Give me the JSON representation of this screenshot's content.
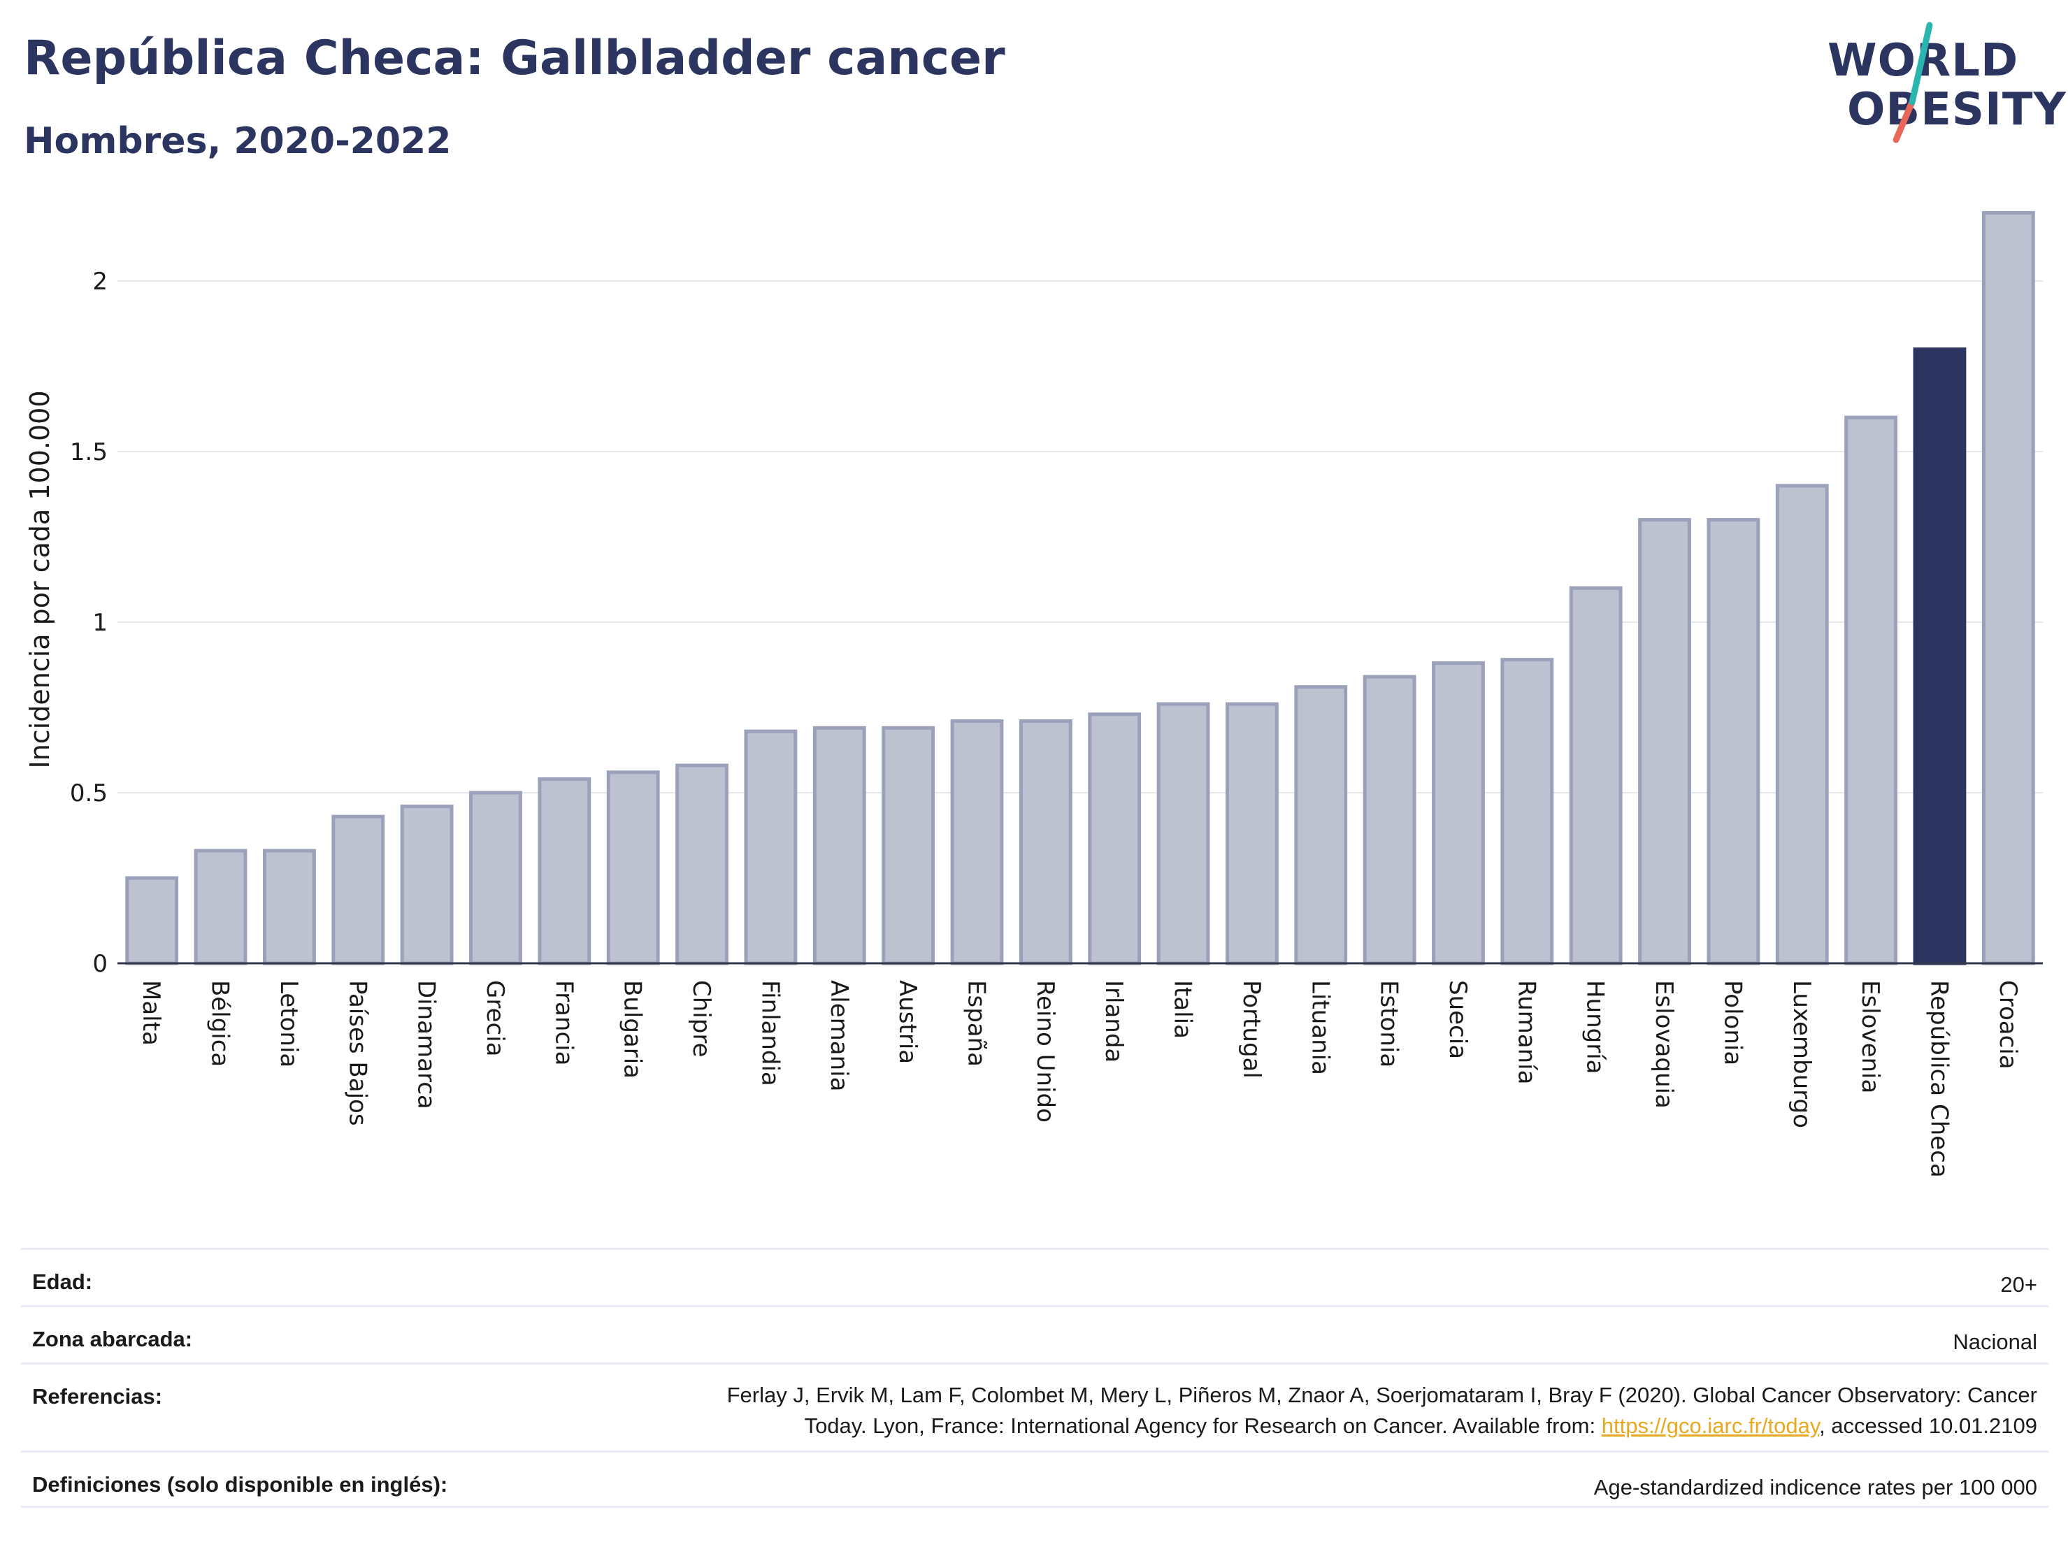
{
  "header": {
    "title": "República Checa: Gallbladder cancer",
    "subtitle": "Hombres, 2020-2022"
  },
  "logo": {
    "line1": "WORLD",
    "line2": "OBESITY",
    "accent_teal": "#2ab5b0",
    "accent_red": "#e8675a"
  },
  "chart_data": {
    "type": "bar",
    "ylabel": "Incidencia por cada 100.000",
    "xlabel": "",
    "ylim": [
      0,
      2.25
    ],
    "yticks": [
      0,
      0.5,
      1,
      1.5,
      2
    ],
    "ytick_labels": [
      "0",
      "0.5",
      "1",
      "1.5",
      "2"
    ],
    "grid": true,
    "highlight": "República Checa",
    "colors": {
      "bar": "#bec1cf",
      "bar_border": "#9ba1ba",
      "highlight": "#2c3560"
    },
    "categories": [
      "Malta",
      "Bélgica",
      "Letonia",
      "Países Bajos",
      "Dinamarca",
      "Grecia",
      "Francia",
      "Bulgaria",
      "Chipre",
      "Finlandia",
      "Alemania",
      "Austria",
      "España",
      "Reino Unido",
      "Irlanda",
      "Italia",
      "Portugal",
      "Lituania",
      "Estonia",
      "Suecia",
      "Rumanía",
      "Hungría",
      "Eslovaquia",
      "Polonia",
      "Luxemburgo",
      "Eslovenia",
      "República Checa",
      "Croacia"
    ],
    "values": [
      0.25,
      0.33,
      0.33,
      0.43,
      0.46,
      0.5,
      0.54,
      0.56,
      0.58,
      0.68,
      0.69,
      0.69,
      0.71,
      0.71,
      0.73,
      0.76,
      0.76,
      0.81,
      0.84,
      0.88,
      0.89,
      1.1,
      1.3,
      1.3,
      1.4,
      1.6,
      1.8,
      2.2
    ]
  },
  "meta": {
    "age_label": "Edad:",
    "age_value": "20+",
    "area_label": "Zona abarcada:",
    "area_value": "Nacional",
    "ref_label": "Referencias:",
    "ref_text_1": "Ferlay J, Ervik M, Lam F, Colombet M, Mery L, Piñeros M, Znaor A, Soerjomataram I, Bray F (2020). Global Cancer Observatory: Cancer",
    "ref_text_2": "Today. Lyon, France: International Agency for Research on Cancer. Available from: ",
    "ref_link": "https://gco.iarc.fr/today",
    "ref_text_3": ", accessed 10.01.2109",
    "def_label": "Definiciones (solo disponible en inglés):",
    "def_value": "Age-standardized indicence rates per 100 000"
  }
}
